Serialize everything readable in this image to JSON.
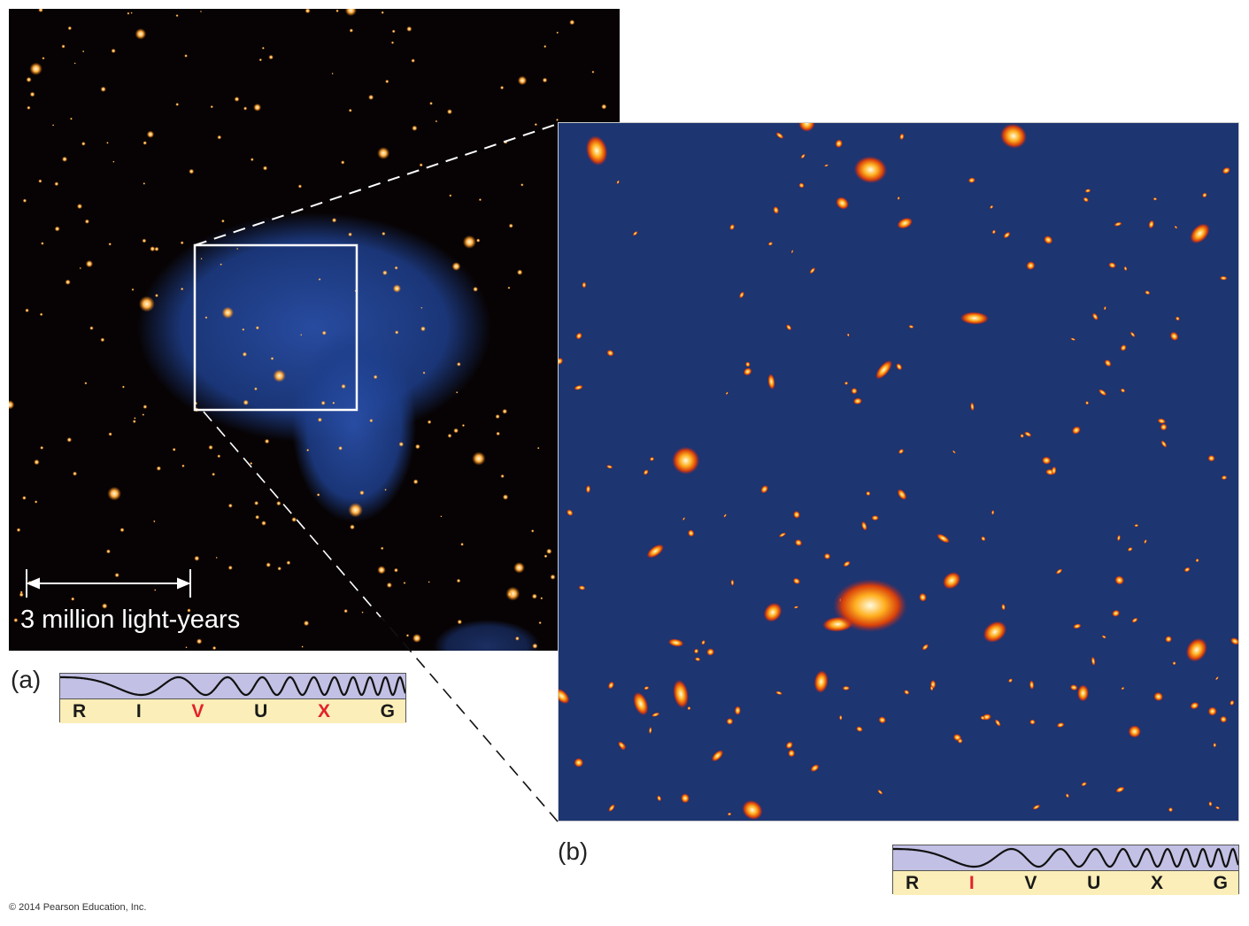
{
  "panel_a": {
    "label": "(a)",
    "scale_bar_text": "3 million light-years",
    "spectrum": {
      "bands": [
        {
          "letter": "R",
          "highlight": false
        },
        {
          "letter": "I",
          "highlight": false
        },
        {
          "letter": "V",
          "highlight": true
        },
        {
          "letter": "U",
          "highlight": false
        },
        {
          "letter": "X",
          "highlight": true
        },
        {
          "letter": "G",
          "highlight": false
        }
      ]
    }
  },
  "panel_b": {
    "label": "(b)",
    "spectrum": {
      "bands": [
        {
          "letter": "R",
          "highlight": false
        },
        {
          "letter": "I",
          "highlight": true
        },
        {
          "letter": "V",
          "highlight": false
        },
        {
          "letter": "U",
          "highlight": false
        },
        {
          "letter": "X",
          "highlight": false
        },
        {
          "letter": "G",
          "highlight": false
        }
      ]
    }
  },
  "colors": {
    "highlight": "#e3222b",
    "normal": "#1a1a1a",
    "star": "#ffb347",
    "galaxy": "#ff8a1c"
  },
  "copyright": "© 2014 Pearson Education, Inc."
}
